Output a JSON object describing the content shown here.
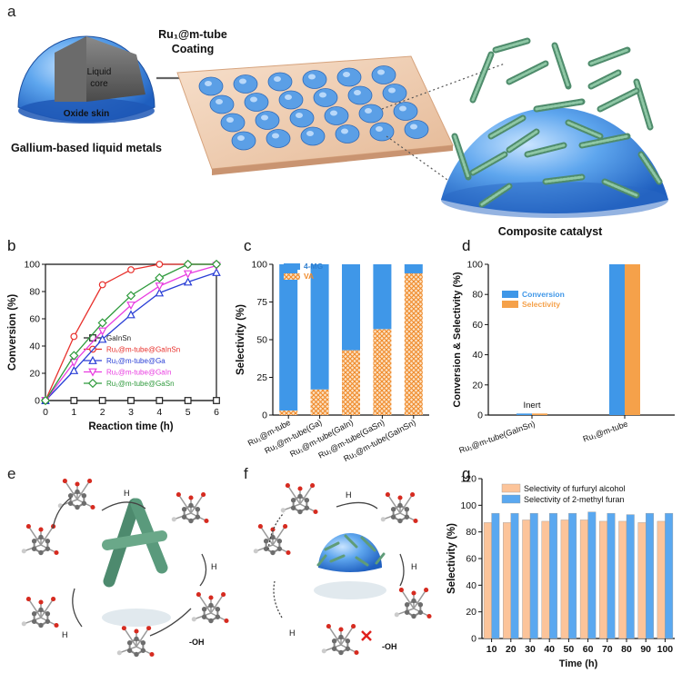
{
  "panels": {
    "a": {
      "letter": "a",
      "shell_labels": [
        "Liquid",
        "core"
      ],
      "skin_label": "Oxide skin",
      "caption": "Gallium-based liquid metals",
      "arrow_labels": [
        "Ru₁@m-tube",
        "Coating"
      ],
      "result_caption": "Composite catalyst"
    },
    "e": {
      "letter": "e",
      "h_labels": [
        "H",
        "H",
        "H"
      ],
      "oh_label": "-OH"
    },
    "f": {
      "letter": "f",
      "h_labels": [
        "H",
        "H",
        "H"
      ],
      "oh_label": "-OH"
    }
  },
  "chart_data": [
    {
      "id": "b",
      "letter": "b",
      "type": "line",
      "xlabel": "Reaction time (h)",
      "ylabel": "Conversion (%)",
      "xlim": [
        0,
        6
      ],
      "ylim": [
        0,
        100
      ],
      "xticks": [
        0,
        1,
        2,
        3,
        4,
        5,
        6
      ],
      "yticks": [
        0,
        20,
        40,
        60,
        80,
        100
      ],
      "x": [
        0,
        1,
        2,
        3,
        4,
        5,
        6
      ],
      "series": [
        {
          "name": "GaInSn",
          "color": "#222222",
          "marker": "square",
          "values": [
            0,
            0,
            0,
            0,
            0,
            0,
            0
          ]
        },
        {
          "name": "Ru₁@m-tube@GaInSn",
          "color": "#e8312d",
          "marker": "circle",
          "values": [
            0,
            47,
            85,
            96,
            100,
            100,
            100
          ]
        },
        {
          "name": "Ru₁@m-tube@Ga",
          "color": "#2a3fd6",
          "marker": "triangle-up",
          "values": [
            0,
            22,
            45,
            63,
            79,
            87,
            94
          ]
        },
        {
          "name": "Ru₁@m-tube@GaIn",
          "color": "#e83ce0",
          "marker": "triangle-down",
          "values": [
            0,
            28,
            51,
            70,
            84,
            93,
            99
          ]
        },
        {
          "name": "Ru₁@m-tube@GaSn",
          "color": "#2e9a3c",
          "marker": "diamond",
          "values": [
            0,
            33,
            57,
            77,
            90,
            100,
            100
          ]
        }
      ],
      "legend_position": "center-right"
    },
    {
      "id": "c",
      "letter": "c",
      "type": "bar",
      "stacked": true,
      "ylabel": "Selectivity (%)",
      "ylim": [
        0,
        100
      ],
      "yticks": [
        0,
        25,
        50,
        75,
        100
      ],
      "categories": [
        "Ru₁@m-tube",
        "Ru₁@m-tube(Ga)",
        "Ru₁@m-tube(GaIn)",
        "Ru₁@m-tube(GaSn)",
        "Ru₁@m-tube(GaInSn)"
      ],
      "series": [
        {
          "name": "VA",
          "color": "#f5a14a",
          "pattern": "crosshatch",
          "values": [
            3,
            17,
            43,
            57,
            94
          ]
        },
        {
          "name": "4-MG",
          "color": "#3f97e8",
          "values": [
            97,
            83,
            57,
            43,
            6
          ]
        }
      ],
      "legend_position": "top-left"
    },
    {
      "id": "d",
      "letter": "d",
      "type": "bar",
      "ylabel": "Conversion & Selectivity (%)",
      "ylim": [
        0,
        100
      ],
      "yticks": [
        0,
        20,
        40,
        60,
        80,
        100
      ],
      "categories": [
        "Ru₁@m-tube(GaInSn)",
        "Ru₁@m-tube"
      ],
      "series": [
        {
          "name": "Conversion",
          "color": "#3f97e8",
          "values": [
            1,
            100
          ]
        },
        {
          "name": "Selectivity",
          "color": "#f5a14a",
          "values": [
            1,
            100
          ]
        }
      ],
      "annotations": [
        {
          "text": "Inert",
          "category": 0
        }
      ],
      "legend_position": "top-left"
    },
    {
      "id": "g",
      "letter": "g",
      "type": "bar",
      "xlabel": "Time (h)",
      "ylabel": "Selectivity (%)",
      "ylim": [
        0,
        120
      ],
      "yticks": [
        0,
        20,
        40,
        60,
        80,
        100,
        120
      ],
      "categories": [
        "10",
        "20",
        "30",
        "40",
        "50",
        "60",
        "70",
        "80",
        "90",
        "100"
      ],
      "series": [
        {
          "name": "Selectivity of furfuryl alcohol",
          "color": "#fcc49a",
          "values": [
            87,
            87,
            89,
            88,
            89,
            89,
            88,
            88,
            87,
            88
          ]
        },
        {
          "name": "Selectivity of 2-methyl furan",
          "color": "#5aa8f0",
          "values": [
            94,
            94,
            94,
            94,
            94,
            95,
            94,
            93,
            94,
            94
          ]
        }
      ],
      "legend_position": "top"
    }
  ]
}
